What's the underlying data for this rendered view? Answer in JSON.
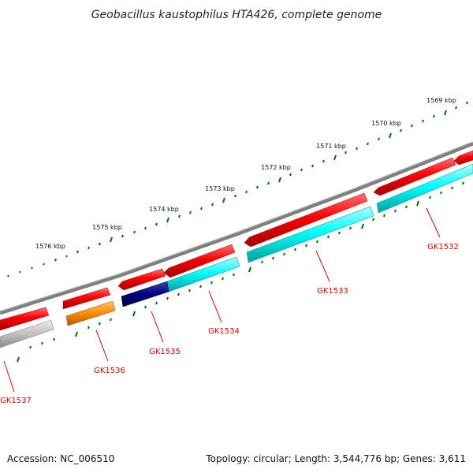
{
  "title": "Geobacillus kaustophilus HTA426, complete genome",
  "footer": {
    "accession": "Accession: NC_006510",
    "summary": "Topology: circular; Length: 3,544,776 bp; Genes: 3,611"
  },
  "ruler_labels": [
    "1569 kbp",
    "1570 kbp",
    "1571 kbp",
    "1572 kbp",
    "1573 kbp",
    "1574 kbp",
    "1575 kbp",
    "1576 kbp"
  ],
  "genes": [
    {
      "name": "GK1532",
      "color": "#ff0000",
      "strand": "reverse"
    },
    {
      "name": "GK1533",
      "color": "#ff0000",
      "strand": "reverse"
    },
    {
      "name": "GK1534",
      "color": "#ff0000",
      "strand": "reverse"
    },
    {
      "name": "GK1535",
      "color": "#ff0000",
      "strand": "reverse"
    },
    {
      "name": "GK1536",
      "color": "#ff0000",
      "strand": "forward"
    },
    {
      "name": "GK1537",
      "color": "#ff0000",
      "strand": "forward"
    }
  ],
  "colors": {
    "backbone": "#7f7f7f",
    "gene": "#ff0000",
    "category_cyan": "#00ffff",
    "category_navy": "#000080",
    "category_orange": "#ff8c00",
    "category_gray": "#c0c0c0",
    "tick": "#007000",
    "label": "#d40000"
  }
}
